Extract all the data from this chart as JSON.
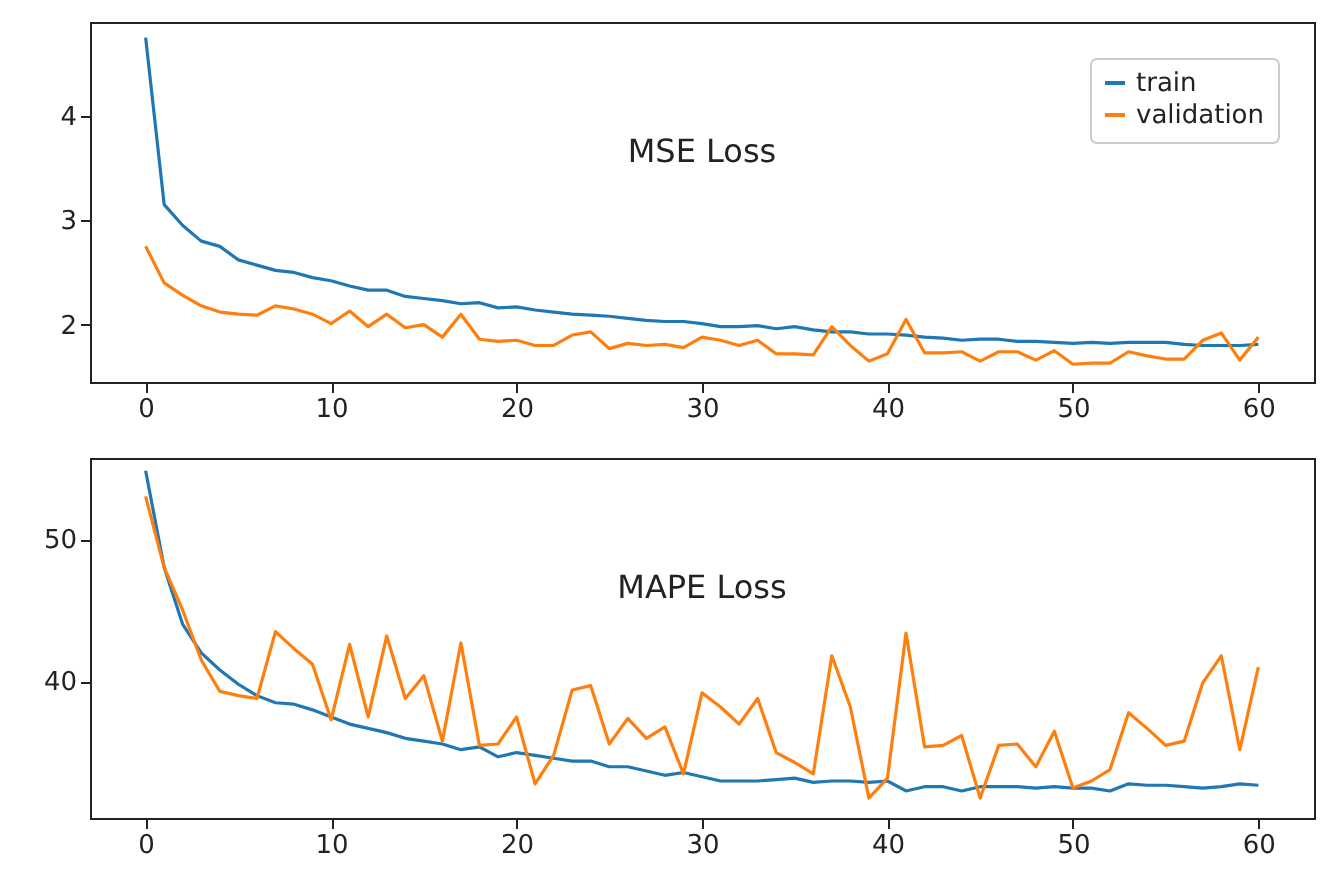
{
  "chart_data": [
    {
      "type": "line",
      "annotations": [
        "MSE Loss"
      ],
      "x": [
        0,
        1,
        2,
        3,
        4,
        5,
        6,
        7,
        8,
        9,
        10,
        11,
        12,
        13,
        14,
        15,
        16,
        17,
        18,
        19,
        20,
        21,
        22,
        23,
        24,
        25,
        26,
        27,
        28,
        29,
        30,
        31,
        32,
        33,
        34,
        35,
        36,
        37,
        38,
        39,
        40,
        41,
        42,
        43,
        44,
        45,
        46,
        47,
        48,
        49,
        50,
        51,
        52,
        53,
        54,
        55,
        56,
        57,
        58,
        59,
        60
      ],
      "xlim": [
        -3,
        63
      ],
      "xticks": [
        0,
        10,
        20,
        30,
        40,
        50,
        60
      ],
      "ylim": [
        1.45,
        4.9
      ],
      "yticks": [
        2,
        3,
        4
      ],
      "legend": "top right",
      "line_style": "solid",
      "series": [
        {
          "name": "train",
          "color": "#1f77b4",
          "values": [
            4.75,
            3.15,
            2.95,
            2.8,
            2.75,
            2.62,
            2.57,
            2.52,
            2.5,
            2.45,
            2.42,
            2.37,
            2.33,
            2.33,
            2.27,
            2.25,
            2.23,
            2.2,
            2.21,
            2.16,
            2.17,
            2.14,
            2.12,
            2.1,
            2.09,
            2.08,
            2.06,
            2.04,
            2.03,
            2.03,
            2.01,
            1.98,
            1.98,
            1.99,
            1.96,
            1.98,
            1.95,
            1.93,
            1.93,
            1.91,
            1.91,
            1.9,
            1.88,
            1.87,
            1.85,
            1.86,
            1.86,
            1.84,
            1.84,
            1.83,
            1.82,
            1.83,
            1.82,
            1.83,
            1.83,
            1.83,
            1.81,
            1.8,
            1.8,
            1.8,
            1.81
          ]
        },
        {
          "name": "validation",
          "color": "#ff7f0e",
          "values": [
            2.75,
            2.4,
            2.28,
            2.18,
            2.12,
            2.1,
            2.09,
            2.18,
            2.15,
            2.1,
            2.01,
            2.13,
            1.98,
            2.1,
            1.97,
            2.0,
            1.88,
            2.1,
            1.86,
            1.84,
            1.85,
            1.8,
            1.8,
            1.9,
            1.93,
            1.77,
            1.82,
            1.8,
            1.81,
            1.78,
            1.88,
            1.85,
            1.8,
            1.85,
            1.72,
            1.72,
            1.71,
            1.98,
            1.8,
            1.65,
            1.72,
            2.05,
            1.73,
            1.73,
            1.74,
            1.65,
            1.74,
            1.74,
            1.66,
            1.75,
            1.62,
            1.63,
            1.63,
            1.74,
            1.7,
            1.67,
            1.67,
            1.85,
            1.92,
            1.66,
            1.88
          ]
        }
      ]
    },
    {
      "type": "line",
      "annotations": [
        "MAPE Loss"
      ],
      "x": [
        0,
        1,
        2,
        3,
        4,
        5,
        6,
        7,
        8,
        9,
        10,
        11,
        12,
        13,
        14,
        15,
        16,
        17,
        18,
        19,
        20,
        21,
        22,
        23,
        24,
        25,
        26,
        27,
        28,
        29,
        30,
        31,
        32,
        33,
        34,
        35,
        36,
        37,
        38,
        39,
        40,
        41,
        42,
        43,
        44,
        45,
        46,
        47,
        48,
        49,
        50,
        51,
        52,
        53,
        54,
        55,
        56,
        57,
        58,
        59,
        60
      ],
      "xlim": [
        -3,
        63
      ],
      "xticks": [
        0,
        10,
        20,
        30,
        40,
        50,
        60
      ],
      "ylim": [
        30.4,
        55.7
      ],
      "yticks": [
        40,
        50
      ],
      "legend": "top right",
      "line_style": "solid",
      "series": [
        {
          "name": "train",
          "color": "#1f77b4",
          "values": [
            54.8,
            48,
            44,
            42,
            40.8,
            39.8,
            39,
            38.5,
            38.4,
            38,
            37.5,
            37,
            36.7,
            36.4,
            36,
            35.8,
            35.6,
            35.2,
            35.4,
            34.7,
            35,
            34.8,
            34.6,
            34.4,
            34.4,
            34,
            34,
            33.7,
            33.4,
            33.6,
            33.3,
            33,
            33,
            33,
            33.1,
            33.2,
            32.9,
            33,
            33,
            32.9,
            33,
            32.3,
            32.6,
            32.6,
            32.3,
            32.6,
            32.6,
            32.6,
            32.5,
            32.6,
            32.5,
            32.5,
            32.3,
            32.8,
            32.7,
            32.7,
            32.6,
            32.5,
            32.6,
            32.8,
            32.7
          ]
        },
        {
          "name": "validation",
          "color": "#ff7f0e",
          "values": [
            53,
            48,
            45,
            41.5,
            39.3,
            39,
            38.8,
            43.5,
            42.3,
            41.2,
            37.3,
            42.6,
            37.5,
            43.2,
            38.8,
            40.4,
            35.8,
            42.7,
            35.5,
            35.6,
            37.5,
            32.8,
            34.8,
            39.4,
            39.7,
            35.6,
            37.4,
            36,
            36.8,
            33.5,
            39.2,
            38.2,
            37,
            38.8,
            35,
            34.3,
            33.5,
            41.8,
            38.2,
            31.8,
            33.2,
            43.4,
            35.4,
            35.5,
            36.2,
            31.8,
            35.5,
            35.6,
            34,
            36.5,
            32.5,
            33,
            33.8,
            37.8,
            36.7,
            35.5,
            35.8,
            39.9,
            41.8,
            35.2,
            41
          ]
        }
      ]
    }
  ]
}
